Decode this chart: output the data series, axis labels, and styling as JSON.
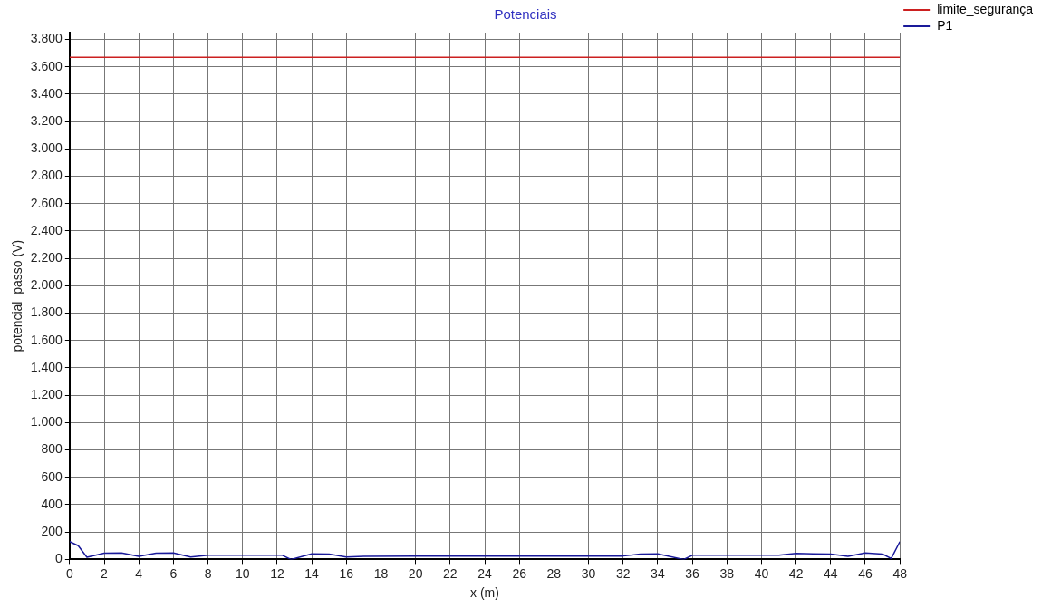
{
  "chart_data": {
    "type": "line",
    "title": "Potenciais",
    "xlabel": "x (m)",
    "ylabel": "potencial_passo (V)",
    "xlim": [
      0,
      48
    ],
    "xticks": [
      0,
      2,
      4,
      6,
      8,
      10,
      12,
      14,
      16,
      18,
      20,
      22,
      24,
      26,
      28,
      30,
      32,
      34,
      36,
      38,
      40,
      42,
      44,
      46,
      48
    ],
    "ylim": [
      0,
      3850
    ],
    "yticks": [
      0,
      200,
      400,
      600,
      800,
      {
        "value": 1000,
        "label": "1.000"
      },
      {
        "value": 1200,
        "label": "1.200"
      },
      {
        "value": 1400,
        "label": "1.400"
      },
      {
        "value": 1600,
        "label": "1.600"
      },
      {
        "value": 1800,
        "label": "1.800"
      },
      {
        "value": 2000,
        "label": "2.000"
      },
      {
        "value": 2200,
        "label": "2.200"
      },
      {
        "value": 2400,
        "label": "2.400"
      },
      {
        "value": 2600,
        "label": "2.600"
      },
      {
        "value": 2800,
        "label": "2.800"
      },
      {
        "value": 3000,
        "label": "3.000"
      },
      {
        "value": 3200,
        "label": "3.200"
      },
      {
        "value": 3400,
        "label": "3.400"
      },
      {
        "value": 3600,
        "label": "3.600"
      },
      {
        "value": 3800,
        "label": "3.800"
      }
    ],
    "grid": true,
    "legend": "top right",
    "marker": "none",
    "line_style": "solid",
    "series": [
      {
        "name": "limite_segurança",
        "color": "#cc2020",
        "x": [
          0,
          48
        ],
        "values": [
          3670,
          3670
        ]
      },
      {
        "name": "P1",
        "color": "#1a1a9a",
        "x": [
          0,
          0.5,
          1,
          2,
          3,
          4,
          5,
          6,
          7,
          8,
          12.3,
          12.8,
          14,
          15,
          16,
          17,
          20,
          24,
          28,
          32,
          33,
          34,
          35.5,
          36,
          41,
          42,
          43,
          44,
          45,
          46,
          47,
          47.5,
          48
        ],
        "values": [
          130,
          100,
          16,
          45,
          48,
          23,
          45,
          48,
          18,
          30,
          30,
          0,
          41,
          39,
          18,
          23,
          25,
          25,
          25,
          25,
          39,
          41,
          0,
          30,
          30,
          44,
          41,
          39,
          23,
          48,
          39,
          7,
          130
        ]
      }
    ]
  }
}
